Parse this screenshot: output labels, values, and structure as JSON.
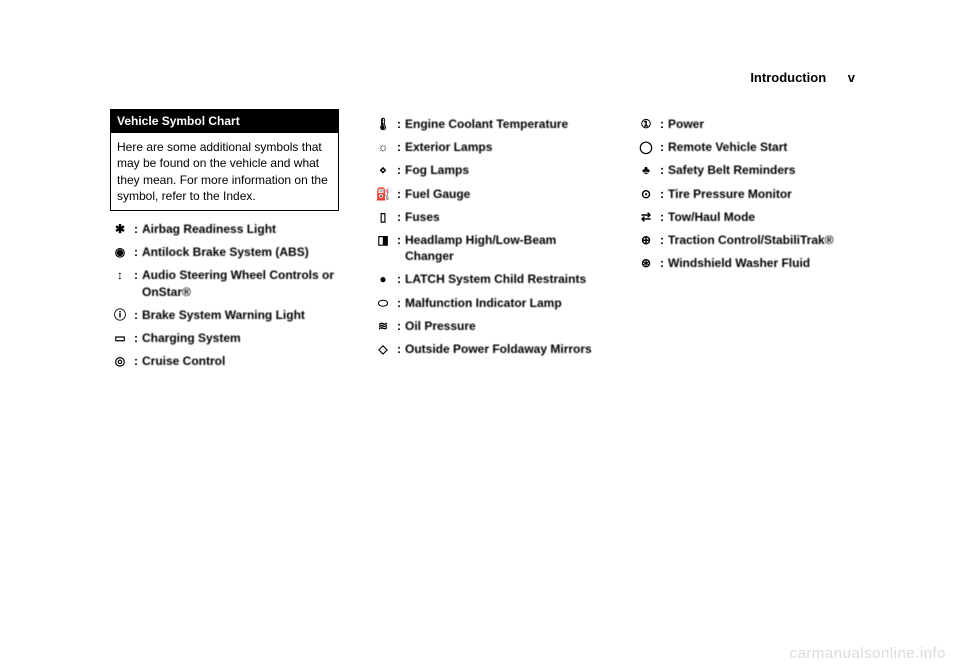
{
  "header": {
    "title": "Introduction",
    "pagenum": "v"
  },
  "chart": {
    "heading": "Vehicle Symbol Chart",
    "body": "Here are some additional symbols that may be found on the vehicle and what they mean. For more information on the symbol, refer to the Index."
  },
  "col1": [
    {
      "sym": "✱",
      "label": "Airbag Readiness Light"
    },
    {
      "sym": "◉",
      "label": "Antilock Brake System (ABS)"
    },
    {
      "sym": "↕",
      "label": "Audio Steering Wheel Controls or OnStar®"
    },
    {
      "sym": "ⓘ",
      "label": "Brake System Warning Light"
    },
    {
      "sym": "▭",
      "label": "Charging System"
    },
    {
      "sym": "◎",
      "label": "Cruise Control"
    }
  ],
  "col2": [
    {
      "sym": "🌡",
      "label": "Engine Coolant Temperature"
    },
    {
      "sym": "☼",
      "label": "Exterior Lamps"
    },
    {
      "sym": "⋄",
      "label": "Fog Lamps"
    },
    {
      "sym": "⛽",
      "label": "Fuel Gauge"
    },
    {
      "sym": "▯",
      "label": "Fuses"
    },
    {
      "sym": "◨",
      "label": "Headlamp High/Low-Beam Changer"
    },
    {
      "sym": "●",
      "label": "LATCH System Child Restraints"
    },
    {
      "sym": "⬭",
      "label": "Malfunction Indicator Lamp"
    },
    {
      "sym": "≋",
      "label": "Oil Pressure"
    },
    {
      "sym": "◇",
      "label": "Outside Power Foldaway Mirrors"
    }
  ],
  "col3": [
    {
      "sym": "①",
      "label": "Power"
    },
    {
      "sym": "◯",
      "label": "Remote Vehicle Start"
    },
    {
      "sym": "♣",
      "label": "Safety Belt Reminders"
    },
    {
      "sym": "⊙",
      "label": "Tire Pressure Monitor"
    },
    {
      "sym": "⇄",
      "label": "Tow/Haul Mode"
    },
    {
      "sym": "⊕",
      "label": "Traction Control/StabiliTrak®"
    },
    {
      "sym": "⊛",
      "label": "Windshield Washer Fluid"
    }
  ],
  "watermark": "carmanualsonline.info"
}
